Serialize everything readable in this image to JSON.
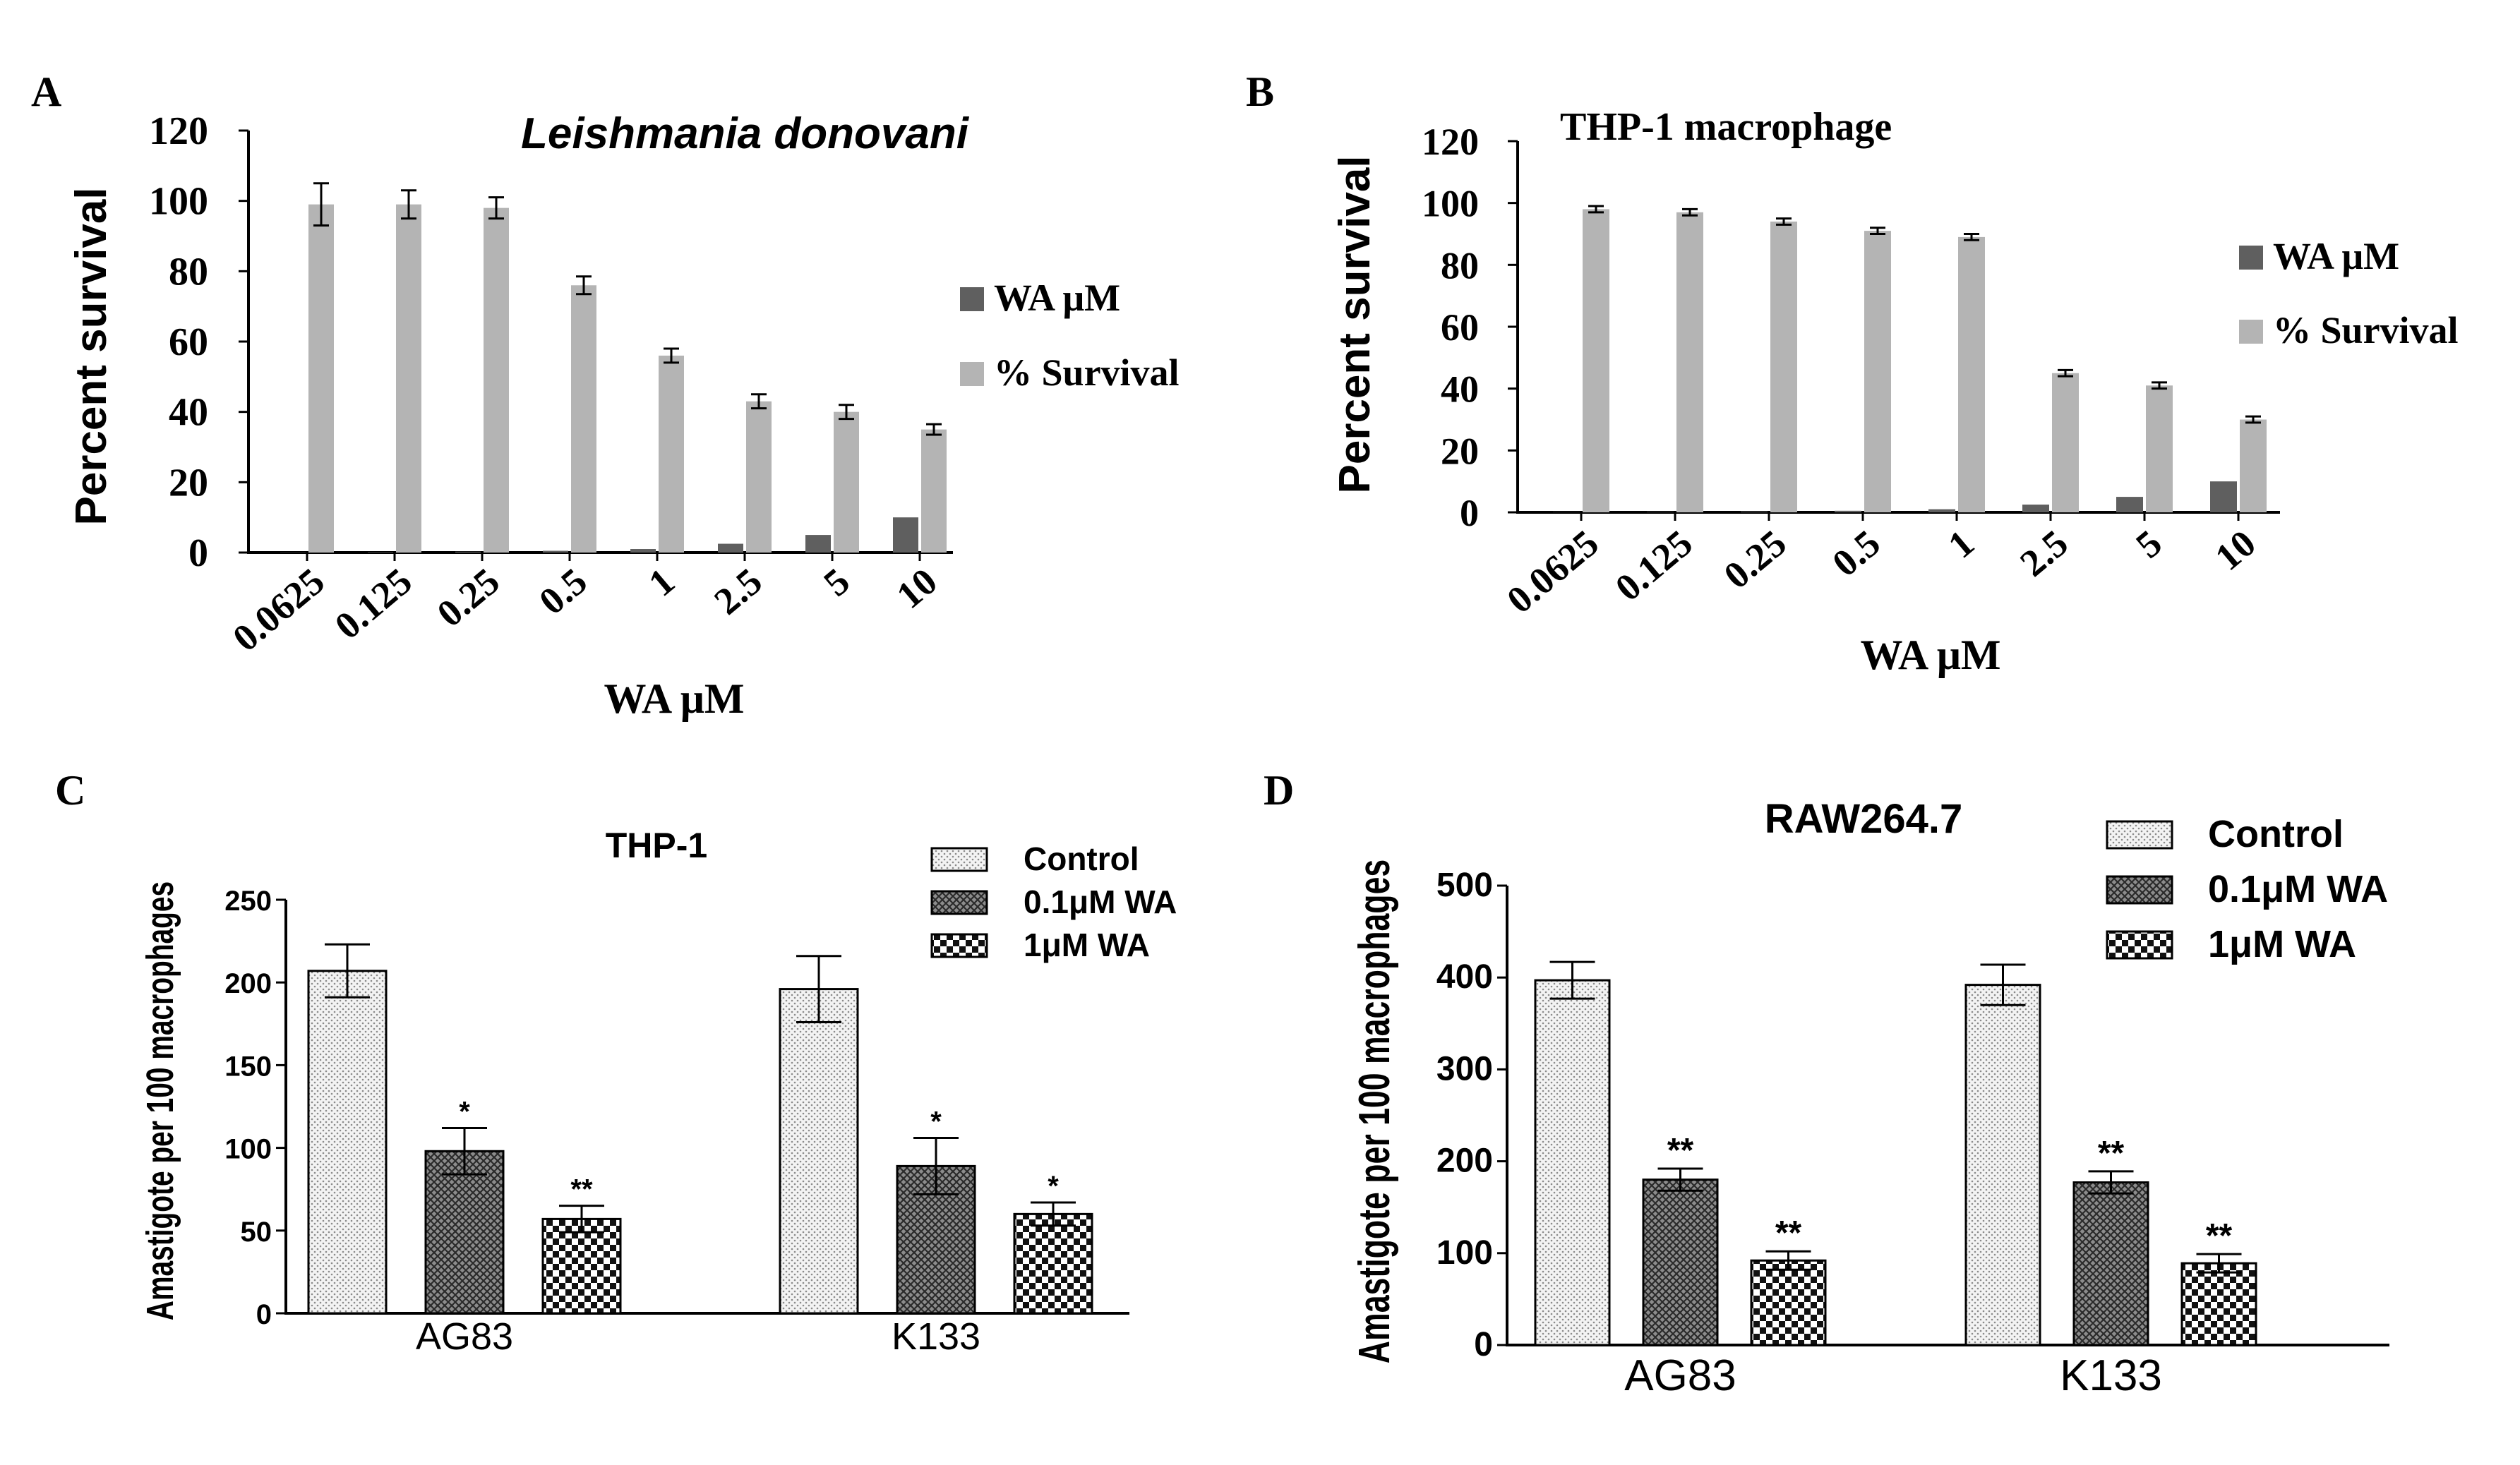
{
  "colors": {
    "dark_gray": "#5f5f5f",
    "light_gray": "#b4b4b4",
    "axis": "#000000"
  },
  "chart_data": [
    {
      "panel": "A",
      "type": "bar",
      "title": "Leishmania donovani",
      "xlabel": "WA μM",
      "ylabel": "Percent survival",
      "ylim": [
        0,
        120
      ],
      "yticks": [
        "0",
        "20",
        "40",
        "60",
        "80",
        "100",
        "120"
      ],
      "categories": [
        "0.0625",
        "0.125",
        "0.25",
        "0.5",
        "1",
        "2.5",
        "5",
        "10"
      ],
      "series": [
        {
          "name": "WA μM",
          "values": [
            0.0625,
            0.125,
            0.25,
            0.5,
            1,
            2.5,
            5,
            10
          ]
        },
        {
          "name": "% Survival",
          "values": [
            99,
            99,
            98,
            76,
            56,
            43,
            40,
            35
          ],
          "errors": [
            6,
            4,
            3,
            2.5,
            2,
            2,
            2,
            1.5
          ]
        }
      ],
      "legend": "right"
    },
    {
      "panel": "B",
      "type": "bar",
      "title": "THP-1 macrophage",
      "xlabel": "WA μM",
      "ylabel": "Percent survival",
      "ylim": [
        0,
        120
      ],
      "yticks": [
        "0",
        "20",
        "40",
        "60",
        "80",
        "100",
        "120"
      ],
      "categories": [
        "0.0625",
        "0.125",
        "0.25",
        "0.5",
        "1",
        "2.5",
        "5",
        "10"
      ],
      "series": [
        {
          "name": "WA μM",
          "values": [
            0.0625,
            0.125,
            0.25,
            0.5,
            1,
            2.5,
            5,
            10
          ]
        },
        {
          "name": "% Survival",
          "values": [
            98,
            97,
            94,
            91,
            89,
            45,
            41,
            30
          ],
          "errors": [
            1,
            1,
            1,
            1,
            1,
            1,
            1,
            1
          ]
        }
      ],
      "legend": "right"
    },
    {
      "panel": "C",
      "type": "bar",
      "title": "THP-1",
      "xlabel": "",
      "ylabel": "Amastigote per 100 macrophages",
      "ylim": [
        0,
        250
      ],
      "yticks": [
        "0",
        "50",
        "100",
        "150",
        "200",
        "250"
      ],
      "categories": [
        "AG83",
        "K133"
      ],
      "series": [
        {
          "name": "Control",
          "values": [
            207,
            196
          ],
          "errors": [
            16,
            20
          ],
          "significance": [
            "",
            ""
          ]
        },
        {
          "name": "0.1μM WA",
          "values": [
            98,
            89
          ],
          "errors": [
            14,
            17
          ],
          "significance": [
            "*",
            "*"
          ]
        },
        {
          "name": "1μM WA",
          "values": [
            57,
            60
          ],
          "errors": [
            8,
            7
          ],
          "significance": [
            "**",
            "*"
          ]
        }
      ],
      "legend": "top-right"
    },
    {
      "panel": "D",
      "type": "bar",
      "title": "RAW264.7",
      "xlabel": "",
      "ylabel": "Amastigote per 100 macrophages",
      "ylim": [
        0,
        500
      ],
      "yticks": [
        "0",
        "100",
        "200",
        "300",
        "400",
        "500"
      ],
      "categories": [
        "AG83",
        "K133"
      ],
      "series": [
        {
          "name": "Control",
          "values": [
            397,
            392
          ],
          "errors": [
            20,
            22
          ],
          "significance": [
            "",
            ""
          ]
        },
        {
          "name": "0.1μM WA",
          "values": [
            180,
            177
          ],
          "errors": [
            12,
            12
          ],
          "significance": [
            "**",
            "**"
          ]
        },
        {
          "name": "1μM WA",
          "values": [
            92,
            89
          ],
          "errors": [
            10,
            10
          ],
          "significance": [
            "**",
            "**"
          ]
        }
      ],
      "legend": "top-right"
    }
  ]
}
